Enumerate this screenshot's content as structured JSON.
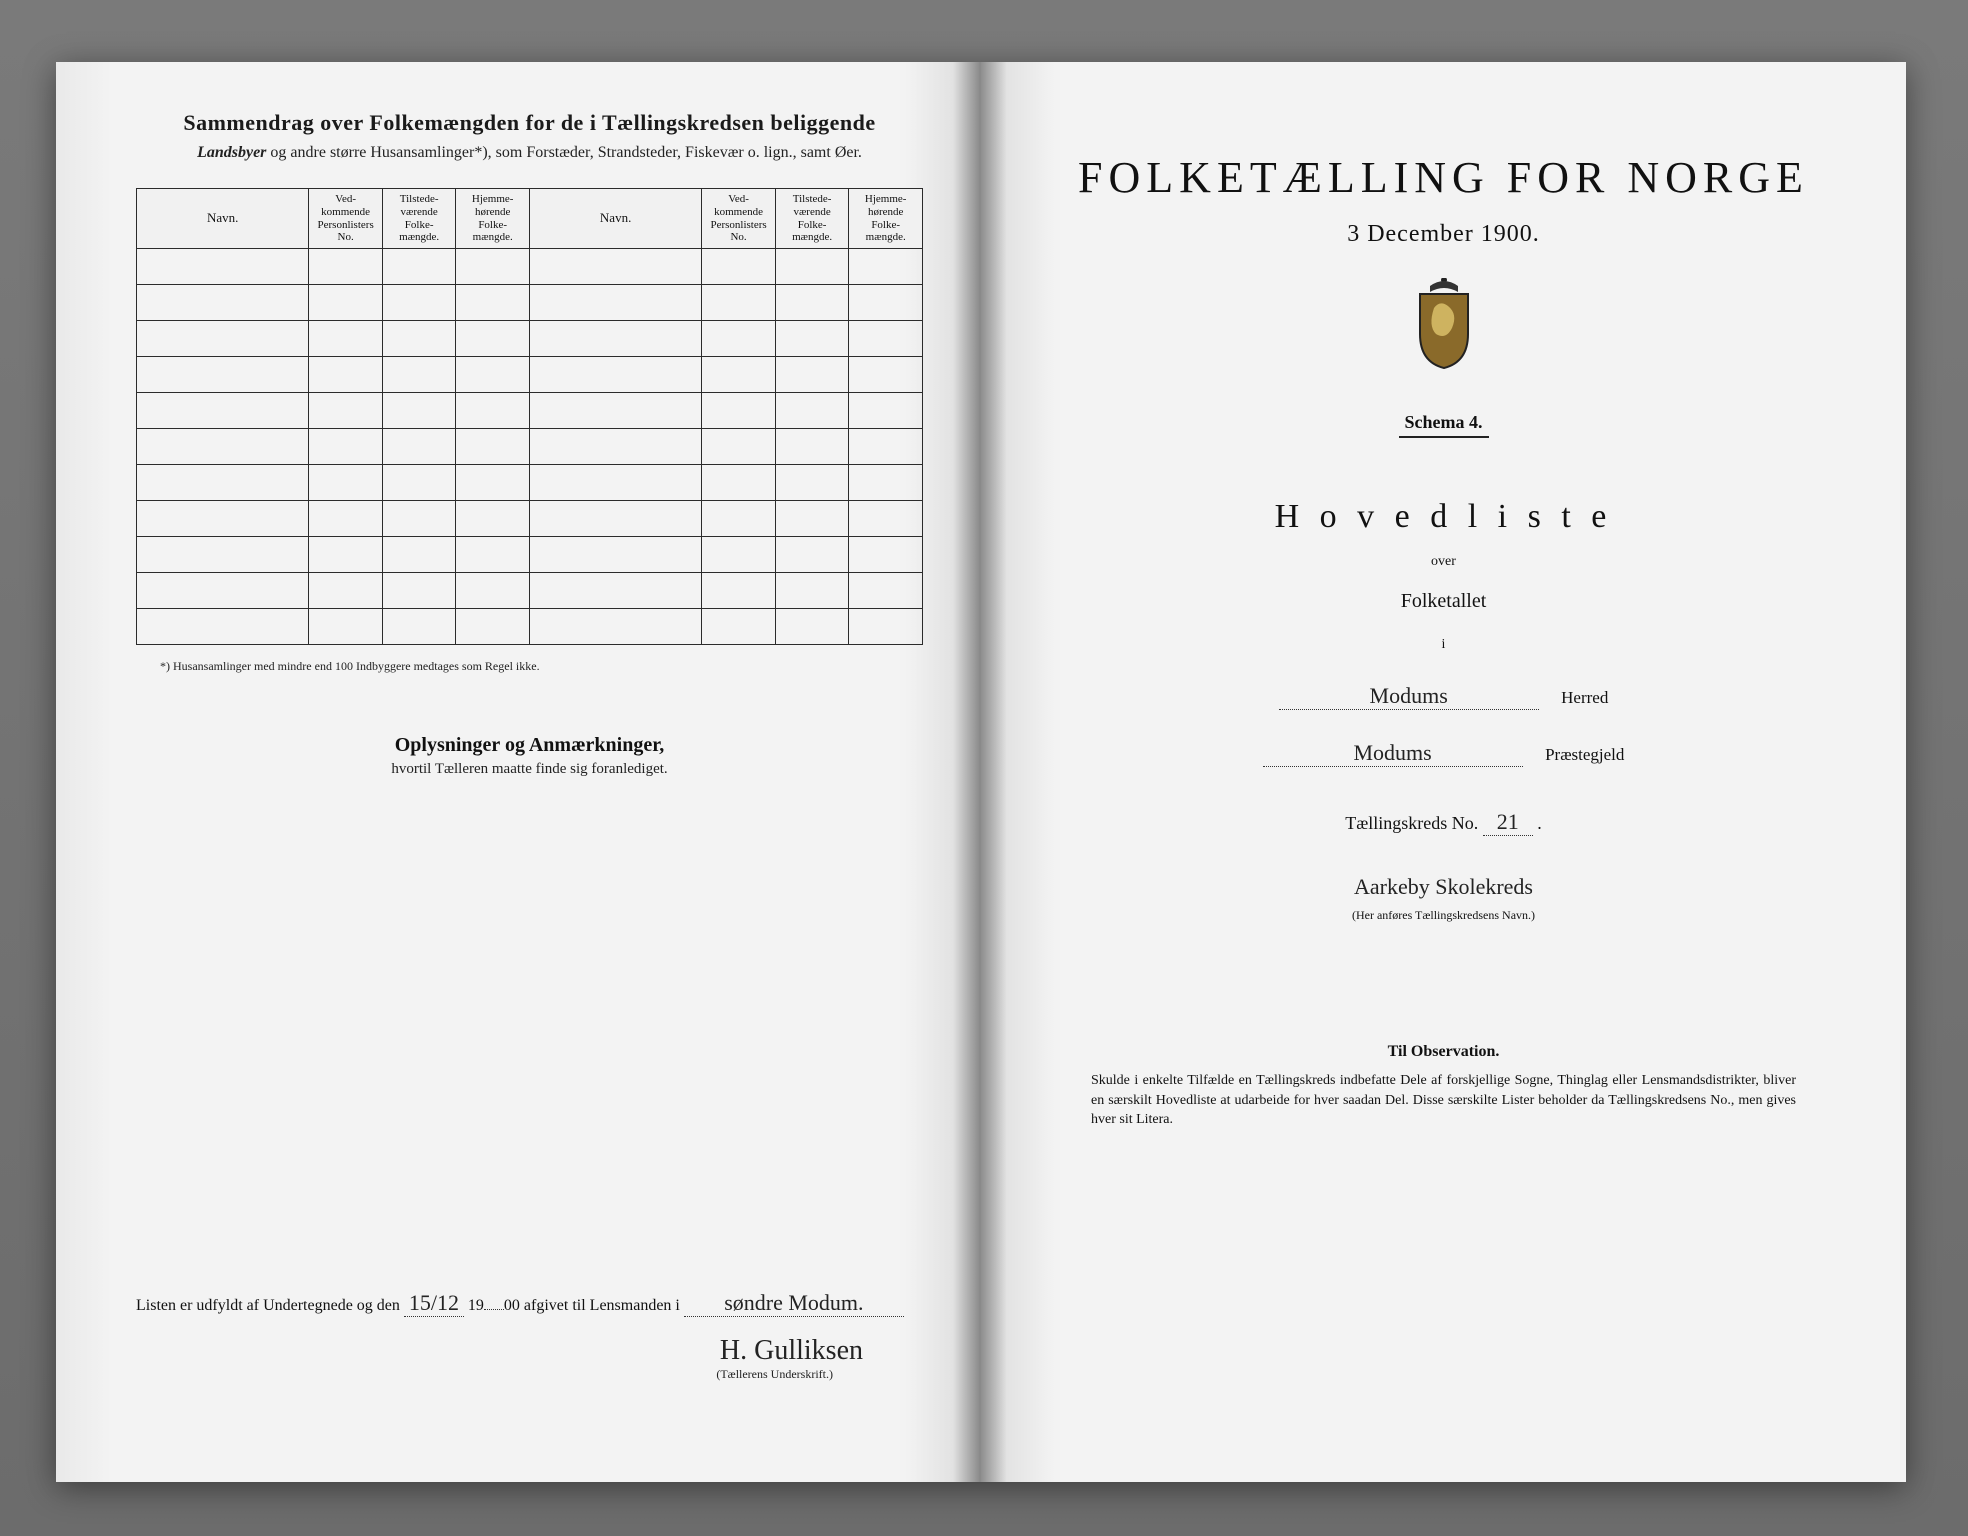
{
  "colors": {
    "paper": "#f2f2f2",
    "ink": "#1a1a1a",
    "rule": "#2b2b2b",
    "desk": "#6a6a6a"
  },
  "left": {
    "title": "Sammendrag over Folkemængden for de i Tællingskredsen beliggende",
    "subtitle_prefix_italic": "Landsbyer",
    "subtitle_rest": " og andre større Husansamlinger*), som Forstæder, Strandsteder, Fiskevær o. lign., samt Øer.",
    "columns": {
      "navn": "Navn.",
      "col1": "Ved-\nkommende\nPersonlisters\nNo.",
      "col2": "Tilstede-\nværende\nFolke-\nmængde.",
      "col3": "Hjemme-\nhørende\nFolke-\nmængde."
    },
    "blank_rows": 11,
    "footnote": "*)  Husansamlinger med mindre end 100 Indbyggere medtages som Regel ikke.",
    "mid_heading": "Oplysninger og Anmærkninger,",
    "mid_sub": "hvortil Tælleren maatte finde sig foranlediget.",
    "attestation": {
      "prefix": "Listen er udfyldt af Undertegnede og den ",
      "date_handwritten": "15/12",
      "year_prefix": " 19",
      "year_suffix": "00 afgivet til Lensmanden i ",
      "place_handwritten": "søndre Modum.",
      "signature_handwritten": "H. Gulliksen",
      "signature_caption": "(Tællerens Underskrift.)"
    }
  },
  "right": {
    "main_title": "FOLKETÆLLING FOR NORGE",
    "date": "3 December 1900.",
    "schema": "Schema 4.",
    "hovedliste": "H o v e d l i s t e",
    "over": "over",
    "folketallet": "Folketallet",
    "i": "i",
    "herred_value": "Modums",
    "herred_label": "Herred",
    "praestegjeld_value": "Modums",
    "praestegjeld_label": "Præstegjeld",
    "kreds_prefix": "Tællingskreds No. ",
    "kreds_no": "21",
    "kreds_name": "Aarkeby Skolekreds",
    "kreds_caption": "(Her anføres Tællingskredsens Navn.)",
    "obs_title": "Til Observation.",
    "obs_body": "Skulde i enkelte Tilfælde en Tællingskreds indbefatte Dele af forskjellige Sogne, Thinglag eller Lensmandsdistrikter, bliver en særskilt Hovedliste at udarbeide for hver saadan Del. Disse særskilte Lister beholder da Tællingskredsens No., men gives hver sit Litera."
  }
}
